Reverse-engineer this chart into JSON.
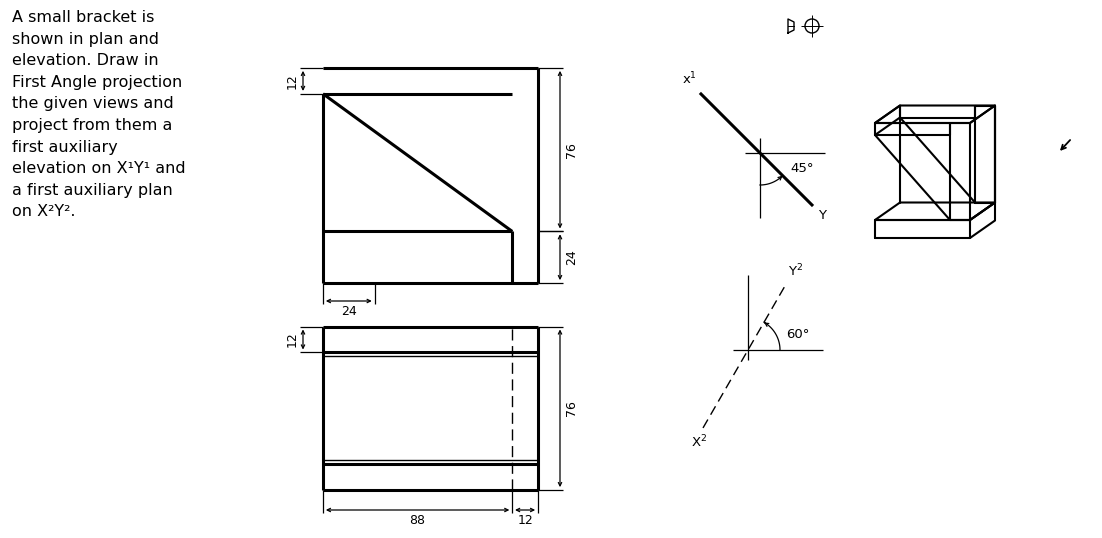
{
  "bg_color": "#ffffff",
  "text_color": "#000000",
  "description": "A small bracket is\nshown in plan and\nelevation. Draw in\nFirst Angle projection\nthe given views and\nproject from them a\nfirst auxiliary\nelevation on X¹Y¹ and\na first auxiliary plan\non X²Y².",
  "angle_45": "45°",
  "angle_60": "60°",
  "dim_76": "76",
  "dim_24": "24",
  "dim_12": "12",
  "dim_88": "88",
  "label_x1": "x¹",
  "label_Y": "Y",
  "label_X2": "X²",
  "label_Y2": "Y²"
}
